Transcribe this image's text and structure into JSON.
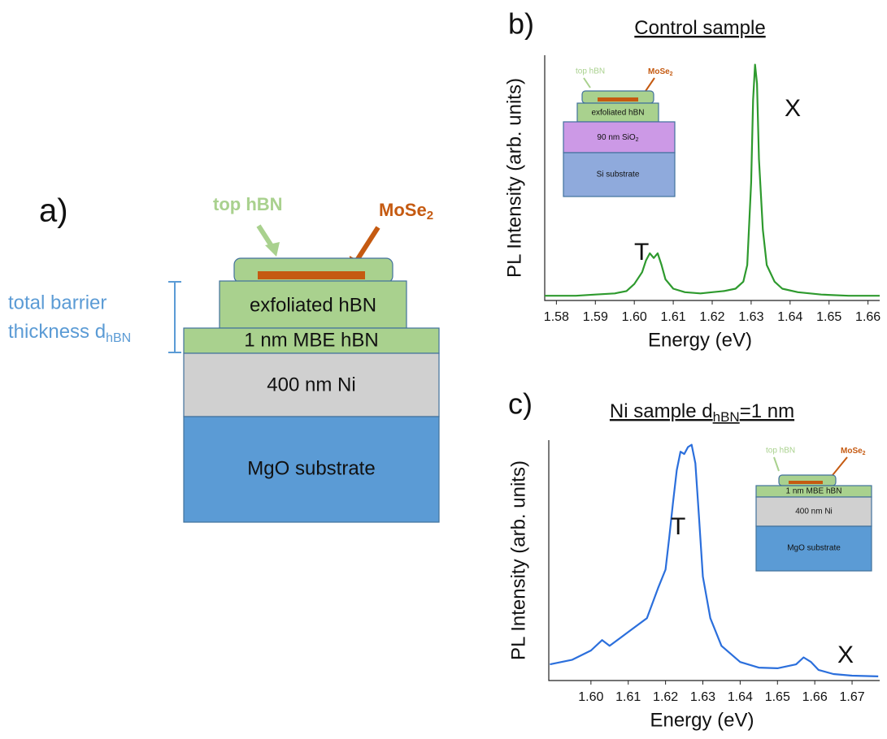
{
  "diagram": {
    "label": "a)",
    "top_hbn": "top hBN",
    "mose2": "MoSe",
    "mose2_sub": "2",
    "barrier_line1": "total barrier",
    "barrier_line2": "thickness d",
    "barrier_sub": "hBN",
    "layers": [
      "exfoliated hBN",
      "1 nm MBE hBN",
      "400 nm Ni",
      "MgO substrate"
    ]
  },
  "chart_data": [
    {
      "type": "line",
      "panel_label": "b)",
      "title": "Control sample",
      "x_label": "Energy (eV)",
      "y_label": "PL Intensity (arb. units)",
      "color": "#2e9a2e",
      "xlim": [
        1.577,
        1.663
      ],
      "xticks": [
        1.58,
        1.59,
        {
          "value": 1.6,
          "label": "1.60"
        },
        1.61,
        1.62,
        1.63,
        1.64,
        1.65,
        1.66
      ],
      "ylim": [
        0,
        104
      ],
      "x": [
        1.577,
        1.585,
        1.59,
        1.595,
        1.598,
        1.6,
        1.602,
        1.603,
        1.604,
        1.605,
        1.606,
        1.607,
        1.608,
        1.61,
        1.613,
        1.617,
        1.62,
        1.623,
        1.626,
        1.628,
        1.629,
        1.63,
        1.6305,
        1.631,
        1.6315,
        1.632,
        1.633,
        1.634,
        1.636,
        1.638,
        1.642,
        1.648,
        1.655,
        1.663
      ],
      "values": [
        2,
        2,
        2.5,
        3,
        4,
        7,
        12,
        17,
        20,
        18,
        20,
        15,
        9,
        5,
        3.5,
        3,
        3.5,
        4,
        5,
        8,
        15,
        50,
        85,
        100,
        92,
        60,
        30,
        15,
        8,
        5,
        3.5,
        2.5,
        2,
        2
      ],
      "annotations": [
        "T",
        "X"
      ],
      "inset": {
        "top_hbn": "top hBN",
        "mose2": "MoSe",
        "mose2_sub": "2",
        "layers": [
          "exfoliated hBN",
          "90 nm SiO",
          "Si substrate"
        ],
        "sio2_sub": "2"
      }
    },
    {
      "type": "line",
      "panel_label": "c)",
      "title": "Ni sample d",
      "title_sub": "hBN",
      "title_end": "=1 nm",
      "x_label": "Energy (eV)",
      "y_label": "PL Intensity (arb. units)",
      "color": "#2b6fdc",
      "xlim": [
        1.5887,
        1.6774
      ],
      "xticks": [
        {
          "value": 1.6,
          "label": "1.60"
        },
        1.61,
        1.62,
        1.63,
        1.64,
        1.65,
        1.66,
        1.67
      ],
      "ylim": [
        0,
        104
      ],
      "x": [
        1.589,
        1.595,
        1.6,
        1.603,
        1.605,
        1.61,
        1.615,
        1.618,
        1.62,
        1.621,
        1.622,
        1.623,
        1.624,
        1.625,
        1.626,
        1.627,
        1.628,
        1.629,
        1.63,
        1.632,
        1.635,
        1.64,
        1.645,
        1.65,
        1.655,
        1.657,
        1.659,
        1.661,
        1.665,
        1.67,
        1.677
      ],
      "values": [
        7,
        9,
        13,
        17.5,
        15,
        21,
        27,
        40,
        48,
        62,
        77,
        91,
        99,
        98,
        101,
        102,
        94,
        70,
        45,
        27,
        15,
        8,
        5.6,
        5.3,
        7,
        10,
        8,
        4.6,
        2.8,
        2.1,
        1.8
      ],
      "annotations": [
        "T",
        "X"
      ],
      "inset": {
        "top_hbn": "top hBN",
        "mose2": "MoSe",
        "mose2_sub": "2",
        "layers": [
          "1 nm MBE hBN",
          "400 nm Ni",
          "MgO substrate"
        ]
      }
    }
  ]
}
